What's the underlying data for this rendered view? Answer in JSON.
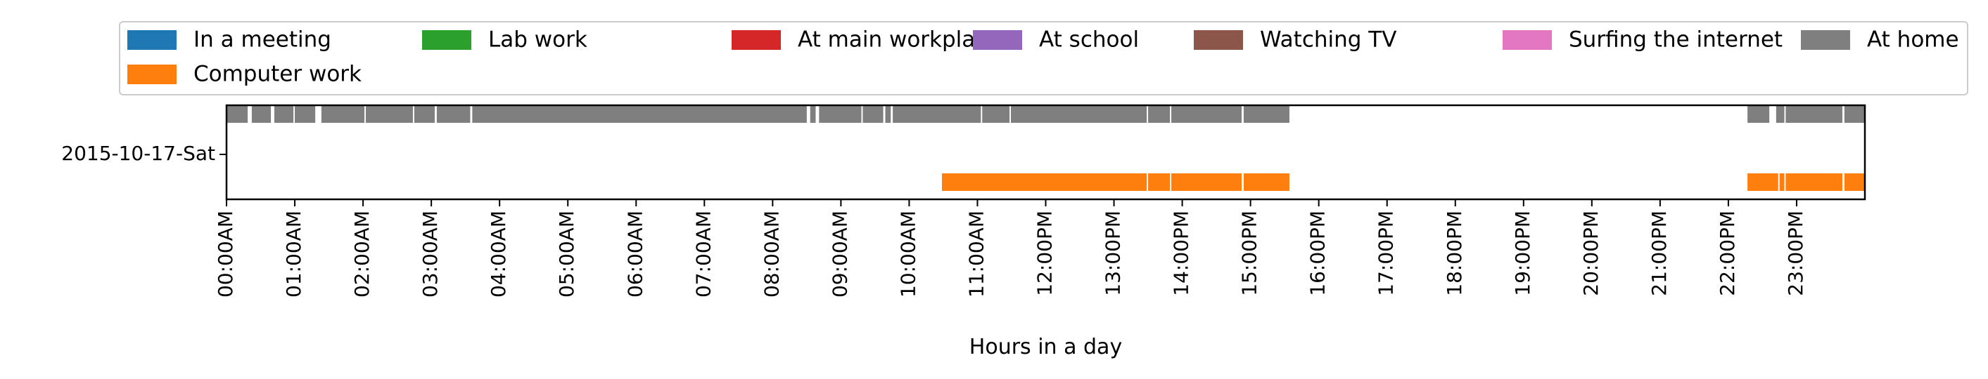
{
  "chart_data": {
    "type": "timeline",
    "title": "",
    "xlabel": "Hours in a day",
    "ylabel": "",
    "xlim_hours": [
      0,
      24
    ],
    "x_ticks": [
      "00:00AM",
      "01:00AM",
      "02:00AM",
      "03:00AM",
      "04:00AM",
      "05:00AM",
      "06:00AM",
      "07:00AM",
      "08:00AM",
      "09:00AM",
      "10:00AM",
      "11:00AM",
      "12:00PM",
      "13:00PM",
      "14:00PM",
      "15:00PM",
      "16:00PM",
      "17:00PM",
      "18:00PM",
      "19:00PM",
      "20:00PM",
      "21:00PM",
      "22:00PM",
      "23:00PM"
    ],
    "categories": [
      "2015-10-17-Sat"
    ],
    "legend": {
      "position": "top",
      "entries": [
        {
          "name": "In a meeting",
          "color": "#1f77b4"
        },
        {
          "name": "Computer work",
          "color": "#ff7f0e"
        },
        {
          "name": "Lab work",
          "color": "#2ca02c"
        },
        {
          "name": "At main workplace",
          "color": "#d62728"
        },
        {
          "name": "At school",
          "color": "#9467bd"
        },
        {
          "name": "Watching TV",
          "color": "#8c564b"
        },
        {
          "name": "Surfing the internet",
          "color": "#e377c2"
        },
        {
          "name": "At home",
          "color": "#7f7f7f"
        }
      ]
    },
    "series": [
      {
        "name": "At home",
        "color": "#7f7f7f",
        "lane": "upper",
        "intervals": [
          [
            0.0,
            0.31
          ],
          [
            0.37,
            0.65
          ],
          [
            0.7,
            0.98
          ],
          [
            1.0,
            1.3
          ],
          [
            1.39,
            2.02
          ],
          [
            2.04,
            2.73
          ],
          [
            2.75,
            3.05
          ],
          [
            3.08,
            3.57
          ],
          [
            3.6,
            8.5
          ],
          [
            8.55,
            8.63
          ],
          [
            8.68,
            9.3
          ],
          [
            9.32,
            9.62
          ],
          [
            9.65,
            9.73
          ],
          [
            9.76,
            11.05
          ],
          [
            11.07,
            11.47
          ],
          [
            11.49,
            13.48
          ],
          [
            13.5,
            13.82
          ],
          [
            13.84,
            14.87
          ],
          [
            14.9,
            15.57
          ],
          [
            22.28,
            22.6
          ],
          [
            22.7,
            22.82
          ],
          [
            22.84,
            23.67
          ],
          [
            23.7,
            24.0
          ]
        ]
      },
      {
        "name": "Computer work",
        "color": "#ff7f0e",
        "lane": "lower",
        "intervals": [
          [
            10.48,
            13.48
          ],
          [
            13.5,
            13.82
          ],
          [
            13.84,
            14.87
          ],
          [
            14.9,
            15.57
          ],
          [
            22.28,
            22.73
          ],
          [
            22.75,
            22.82
          ],
          [
            22.84,
            23.67
          ],
          [
            23.7,
            24.0
          ]
        ]
      }
    ]
  }
}
